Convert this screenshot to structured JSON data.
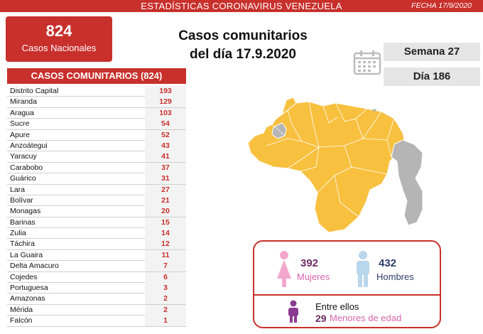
{
  "header": {
    "title": "ESTADÍSTICAS CORONAVIRUS VENEZUELA",
    "date": "FECHA 17/9/2020"
  },
  "national": {
    "count": "824",
    "label": "Casos Nacionales"
  },
  "headline": {
    "line1": "Casos comunitarios",
    "line2": "del día 17.9.2020"
  },
  "week": "Semana 27",
  "day": "Día 186",
  "table": {
    "title": "CASOS COMUNITARIOS (824)",
    "rows": [
      {
        "state": "Distrito Capital",
        "value": "193"
      },
      {
        "state": "Miranda",
        "value": "129"
      },
      {
        "state": "Aragua",
        "value": "103"
      },
      {
        "state": "Sucre",
        "value": "54"
      },
      {
        "state": "Apure",
        "value": "52"
      },
      {
        "state": "Anzoátegui",
        "value": "43"
      },
      {
        "state": "Yaracuy",
        "value": "41"
      },
      {
        "state": "Carabobo",
        "value": "37"
      },
      {
        "state": "Guárico",
        "value": "31"
      },
      {
        "state": "Lara",
        "value": "27"
      },
      {
        "state": "Bolívar",
        "value": "21"
      },
      {
        "state": "Monagas",
        "value": "20"
      },
      {
        "state": "Barinas",
        "value": "15"
      },
      {
        "state": "Zulia",
        "value": "14"
      },
      {
        "state": "Táchira",
        "value": "12"
      },
      {
        "state": "La Guaira",
        "value": "11"
      },
      {
        "state": "Delta Amacuro",
        "value": "7"
      },
      {
        "state": "Cojedes",
        "value": "6"
      },
      {
        "state": "Portuguesa",
        "value": "3"
      },
      {
        "state": "Amazonas",
        "value": "2"
      },
      {
        "state": "Mérida",
        "value": "2"
      },
      {
        "state": "Falcón",
        "value": "1"
      }
    ]
  },
  "demographics": {
    "women": {
      "count": "392",
      "label": "Mujeres",
      "icon": "woman-icon"
    },
    "men": {
      "count": "432",
      "label": "Hombres",
      "icon": "man-icon"
    },
    "minors": {
      "intro": "Entre ellos",
      "count": "29",
      "label": "Menores de edad",
      "icon": "child-icon"
    }
  },
  "colors": {
    "accent": "#c8302c",
    "map_fill": "#f8c03f",
    "map_gray": "#b5b5b5",
    "women": "#f4a7cc",
    "men": "#b9d6ea",
    "minors": "#8a3a90"
  }
}
